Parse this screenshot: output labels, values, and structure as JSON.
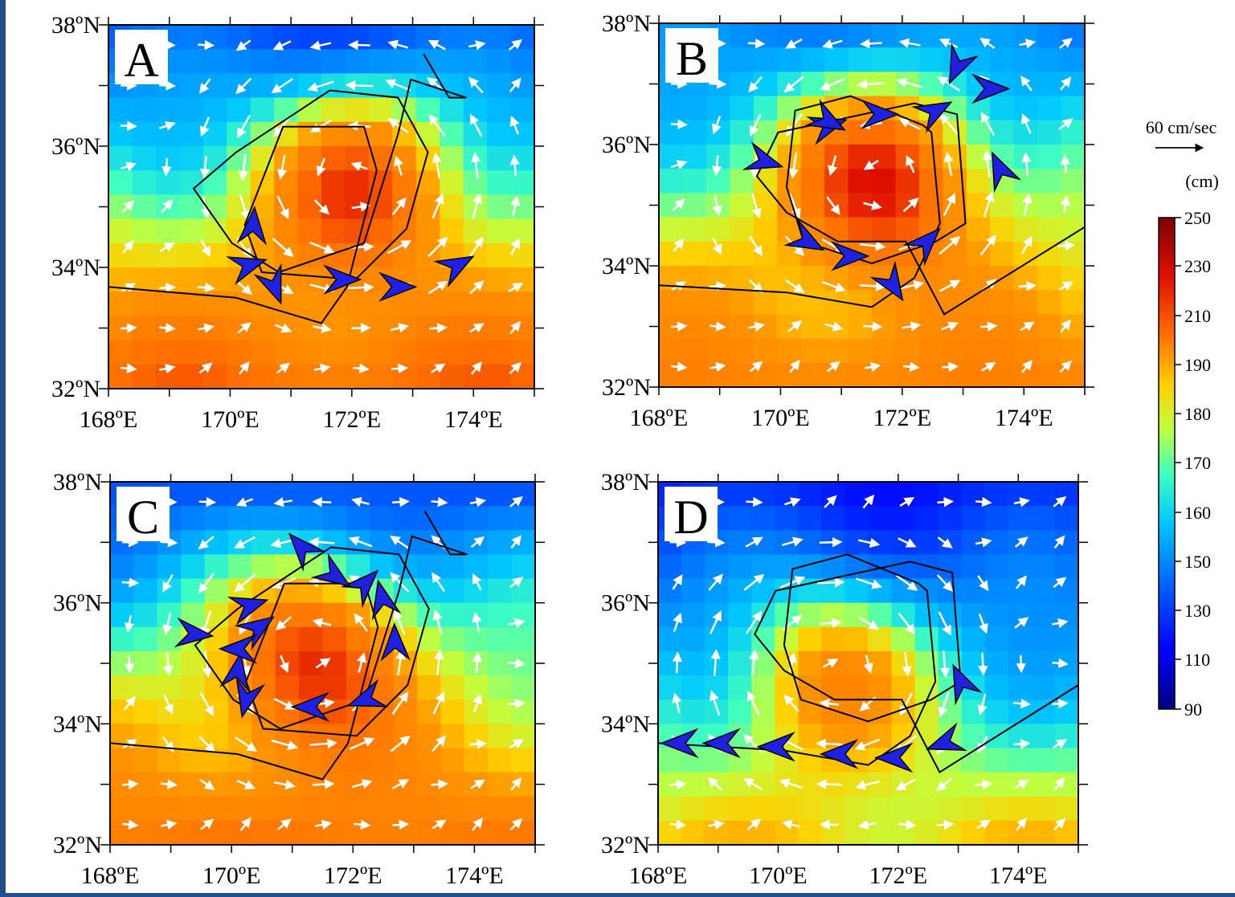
{
  "figure": {
    "panels": [
      {
        "label": "A",
        "track": "A"
      },
      {
        "label": "B",
        "track": "B"
      },
      {
        "label": "C",
        "track": "A"
      },
      {
        "label": "D",
        "track": "B"
      }
    ],
    "lat_ticks": [
      "32ºN",
      "34ºN",
      "36ºN",
      "38ºN"
    ],
    "lon_ticks": [
      "168ºE",
      "170ºE",
      "172ºE",
      "174ºE"
    ],
    "lat_range": [
      32,
      38
    ],
    "lon_range": [
      168,
      175
    ]
  },
  "legend": {
    "vector_scale": "60 cm/sec",
    "colorbar_unit": "(cm)",
    "colorbar_ticks": [
      "250",
      "230",
      "210",
      "190",
      "180",
      "170",
      "160",
      "150",
      "130",
      "110",
      "90"
    ]
  },
  "colors": {
    "track_line": "#000000",
    "eddy_arrows": "#2020e0",
    "current_vectors": "#ffffff",
    "colormap": [
      "#00007f",
      "#0000ff",
      "#007fff",
      "#00ffff",
      "#7fff7f",
      "#ffff00",
      "#ff7f00",
      "#ff0000",
      "#7f0000"
    ]
  },
  "chart_data": {
    "type": "heatmap",
    "title": "",
    "xlabel": "",
    "ylabel": "",
    "colorbar_range": [
      90,
      250
    ],
    "colorbar_unit": "cm",
    "vector_scale": "60 cm/sec",
    "panels": [
      "A",
      "B",
      "C",
      "D"
    ]
  }
}
